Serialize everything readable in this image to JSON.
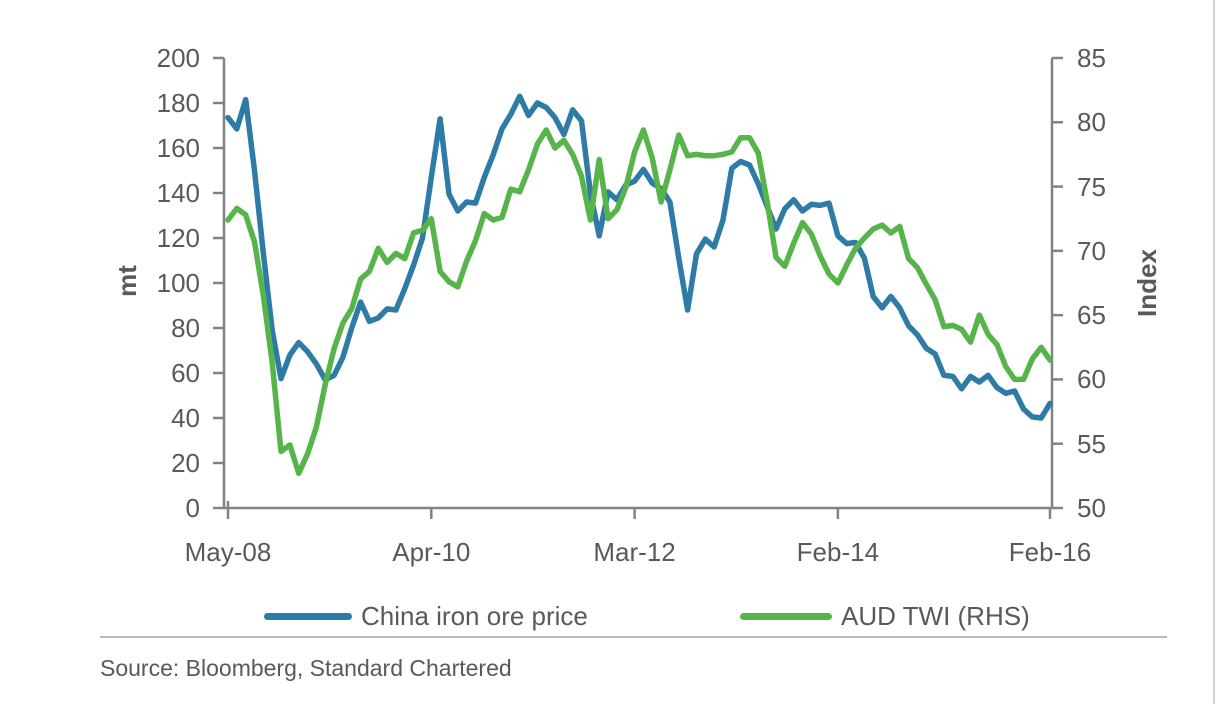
{
  "chart_data": {
    "type": "line",
    "x_unit": "month",
    "n_points": 94,
    "x_tick_labels": [
      "May-08",
      "Apr-10",
      "Mar-12",
      "Feb-14",
      "Feb-16"
    ],
    "x_tick_month_index": [
      0,
      23,
      46,
      69,
      93
    ],
    "grid": false,
    "legend_position": "bottom",
    "axes": {
      "left": {
        "title": "mt",
        "min": 0,
        "max": 200,
        "step": 20
      },
      "right": {
        "title": "Index",
        "min": 50,
        "max": 85,
        "step": 5
      }
    },
    "series": [
      {
        "name": "China iron ore price",
        "axis": "left",
        "color": "#2E7CA5",
        "values": [
          173.5,
          168.5,
          181.5,
          150,
          113,
          79,
          57.5,
          68,
          73.5,
          69.5,
          64,
          57,
          59,
          67,
          80,
          91.5,
          83,
          84.5,
          88.5,
          88,
          97.5,
          108,
          120,
          147,
          173,
          139.5,
          132,
          136,
          135.5,
          147,
          157,
          168.5,
          175,
          183,
          174.5,
          180,
          178,
          173.5,
          166,
          177,
          172,
          140,
          121,
          140.5,
          137,
          143.5,
          145.3,
          150.5,
          144.4,
          142,
          136,
          111,
          88,
          113,
          119.5,
          116,
          128,
          151,
          154,
          152.5,
          144,
          134,
          124,
          133,
          137,
          132,
          135,
          134.5,
          135.5,
          121,
          117.5,
          118,
          111,
          94,
          89,
          94,
          89,
          81,
          77,
          71,
          68.5,
          59,
          58.5,
          53,
          58.5,
          56,
          59,
          53.5,
          51,
          52,
          44,
          40.5,
          40,
          46.5
        ]
      },
      {
        "name": "AUD TWI (RHS)",
        "axis": "right",
        "color": "#57B44B",
        "values": [
          72.4,
          73.3,
          72.8,
          70.7,
          66.5,
          61.3,
          54.4,
          54.9,
          52.7,
          54.2,
          56.3,
          59.6,
          62.4,
          64.4,
          65.5,
          67.8,
          68.4,
          70.2,
          69.1,
          69.8,
          69.4,
          71.4,
          71.6,
          72.5,
          68.4,
          67.6,
          67.2,
          69.2,
          70.8,
          72.9,
          72.4,
          72.6,
          74.8,
          74.6,
          76.3,
          78.3,
          79.4,
          78.0,
          78.6,
          77.5,
          75.8,
          72.4,
          77.1,
          72.5,
          73.2,
          74.9,
          77.7,
          79.4,
          77.2,
          73.8,
          76.3,
          79.0,
          77.4,
          77.5,
          77.4,
          77.4,
          77.5,
          77.7,
          78.8,
          78.8,
          77.6,
          73.8,
          69.5,
          68.8,
          70.6,
          72.2,
          71.3,
          69.6,
          68.2,
          67.5,
          68.9,
          70.2,
          71.0,
          71.7,
          72.0,
          71.4,
          71.9,
          69.4,
          68.7,
          67.4,
          66.2,
          64.1,
          64.2,
          63.9,
          62.9,
          65.0,
          63.5,
          62.7,
          61.0,
          60.0,
          60.0,
          61.6,
          62.5,
          61.5
        ]
      }
    ]
  },
  "source": {
    "text": "Source: Bloomberg, Standard Chartered"
  },
  "colors": {
    "axis_line": "#808285",
    "text": "#58595B",
    "divider": "#b7b9bb",
    "page_border": "#d2d4d5"
  }
}
